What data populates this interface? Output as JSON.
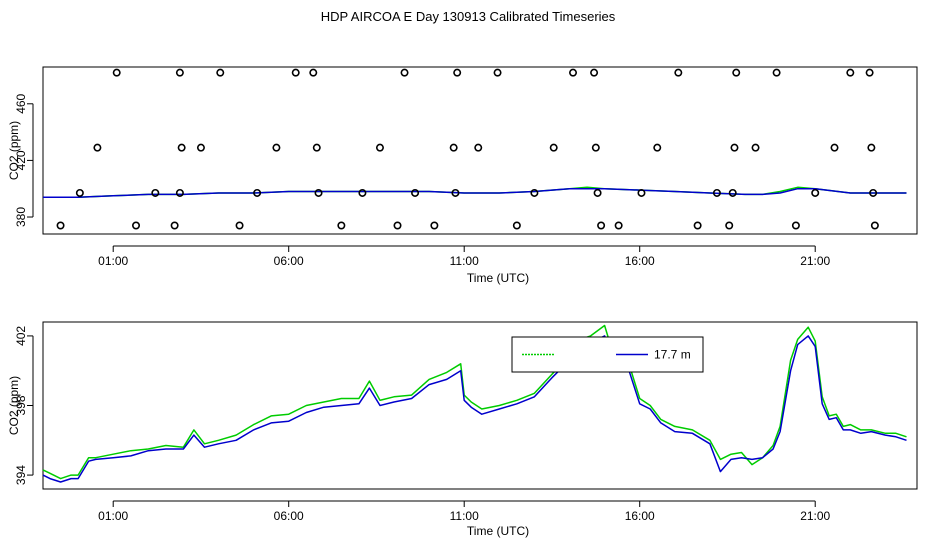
{
  "page_title": "HDP AIRCOA E  Day 130913  Calibrated Timeseries",
  "chart_data": [
    {
      "type": "scatter",
      "xlabel": "Time (UTC)",
      "ylabel": "CO2 (ppm)",
      "x_unit": "hours",
      "xlim": [
        -1.0,
        23.9
      ],
      "ylim": [
        368,
        486
      ],
      "x_ticks": [
        1,
        6,
        11,
        16,
        21
      ],
      "x_tick_labels": [
        "01:00",
        "06:00",
        "11:00",
        "16:00",
        "21:00"
      ],
      "y_ticks": [
        380,
        420,
        460
      ],
      "y_tick_labels": [
        "380",
        "420",
        "460"
      ],
      "grid": false,
      "colors": {
        "green": "#00cc00",
        "blue": "#0000cc",
        "points": "#000000"
      },
      "points": [
        [
          -0.5,
          374
        ],
        [
          0.05,
          397
        ],
        [
          0.55,
          429
        ],
        [
          1.1,
          482
        ],
        [
          1.65,
          374
        ],
        [
          2.2,
          397
        ],
        [
          2.75,
          374
        ],
        [
          2.9,
          397
        ],
        [
          2.95,
          429
        ],
        [
          2.9,
          482
        ],
        [
          3.5,
          429
        ],
        [
          4.05,
          482
        ],
        [
          4.6,
          374
        ],
        [
          5.1,
          397
        ],
        [
          5.65,
          429
        ],
        [
          6.2,
          482
        ],
        [
          6.7,
          482
        ],
        [
          6.8,
          429
        ],
        [
          6.85,
          397
        ],
        [
          7.5,
          374
        ],
        [
          8.1,
          397
        ],
        [
          8.6,
          429
        ],
        [
          9.1,
          374
        ],
        [
          9.3,
          482
        ],
        [
          9.6,
          397
        ],
        [
          10.15,
          374
        ],
        [
          10.75,
          397
        ],
        [
          10.7,
          429
        ],
        [
          10.8,
          482
        ],
        [
          11.4,
          429
        ],
        [
          11.95,
          482
        ],
        [
          12.5,
          374
        ],
        [
          13.0,
          397
        ],
        [
          13.55,
          429
        ],
        [
          14.1,
          482
        ],
        [
          14.7,
          482
        ],
        [
          14.75,
          429
        ],
        [
          14.8,
          397
        ],
        [
          14.9,
          374
        ],
        [
          15.4,
          374
        ],
        [
          16.05,
          397
        ],
        [
          16.5,
          429
        ],
        [
          17.1,
          482
        ],
        [
          17.65,
          374
        ],
        [
          18.2,
          397
        ],
        [
          18.65,
          397
        ],
        [
          18.7,
          429
        ],
        [
          18.75,
          482
        ],
        [
          18.55,
          374
        ],
        [
          19.3,
          429
        ],
        [
          19.9,
          482
        ],
        [
          20.45,
          374
        ],
        [
          21.0,
          397
        ],
        [
          21.55,
          429
        ],
        [
          22.0,
          482
        ],
        [
          22.55,
          482
        ],
        [
          22.6,
          429
        ],
        [
          22.65,
          397
        ],
        [
          22.7,
          374
        ]
      ],
      "series": [
        {
          "color": "#00cc00",
          "x": [
            -1,
            0,
            1,
            2,
            3,
            4,
            5,
            6,
            7,
            8,
            9,
            10,
            11,
            12,
            13,
            14,
            14.5,
            15,
            16,
            17,
            18,
            19,
            19.5,
            20,
            20.5,
            21,
            22,
            23,
            23.6
          ],
          "values": [
            394,
            394,
            395,
            396,
            396,
            397,
            397,
            398,
            398,
            398,
            398,
            398,
            397,
            397,
            398,
            400,
            401,
            400,
            399,
            398,
            397,
            396,
            396,
            398,
            401,
            400,
            397,
            397,
            397
          ]
        },
        {
          "color": "#0000cc",
          "x": [
            -1,
            0,
            1,
            2,
            3,
            4,
            5,
            6,
            7,
            8,
            9,
            10,
            11,
            12,
            13,
            14,
            14.5,
            15,
            16,
            17,
            18,
            19,
            19.5,
            20,
            20.5,
            21,
            22,
            23,
            23.6
          ],
          "values": [
            394,
            394,
            395,
            396,
            396,
            397,
            397,
            398,
            398,
            398,
            398,
            398,
            397,
            397,
            398,
            400,
            400,
            400,
            399,
            398,
            397,
            396,
            396,
            397,
            400,
            400,
            397,
            397,
            397
          ]
        }
      ]
    },
    {
      "type": "line",
      "xlabel": "Time (UTC)",
      "ylabel": "CO2 (ppm)",
      "x_unit": "hours",
      "xlim": [
        -1.0,
        23.9
      ],
      "ylim": [
        393.2,
        402.8
      ],
      "x_ticks": [
        1,
        6,
        11,
        16,
        21
      ],
      "x_tick_labels": [
        "01:00",
        "06:00",
        "11:00",
        "16:00",
        "21:00"
      ],
      "y_ticks": [
        394,
        398,
        402
      ],
      "y_tick_labels": [
        "394",
        "398",
        "402"
      ],
      "grid": false,
      "legend_position": "top-center",
      "series": [
        {
          "name": "",
          "color": "#00cc00",
          "x": [
            -1,
            -0.8,
            -0.5,
            -0.2,
            0,
            0.3,
            0.5,
            1,
            1.5,
            2,
            2.5,
            3,
            3.3,
            3.6,
            4,
            4.5,
            5,
            5.5,
            6,
            6.5,
            7,
            7.5,
            8,
            8.3,
            8.6,
            9,
            9.5,
            10,
            10.5,
            10.9,
            11,
            11.2,
            11.5,
            12,
            12.5,
            13,
            13.5,
            14,
            14.3,
            14.6,
            15,
            15.3,
            15.6,
            16,
            16.3,
            16.6,
            17,
            17.5,
            18,
            18.3,
            18.6,
            18.9,
            19.2,
            19.5,
            19.8,
            20,
            20.3,
            20.5,
            20.8,
            21,
            21.2,
            21.4,
            21.6,
            21.8,
            22,
            22.3,
            22.6,
            23,
            23.3,
            23.6
          ],
          "values": [
            394.3,
            394.1,
            393.8,
            394.0,
            394.0,
            395.0,
            395.0,
            395.2,
            395.4,
            395.5,
            395.7,
            395.6,
            396.6,
            395.8,
            396.0,
            396.3,
            396.9,
            397.4,
            397.5,
            398.0,
            398.2,
            398.4,
            398.4,
            399.4,
            398.3,
            398.5,
            398.6,
            399.5,
            399.9,
            400.4,
            398.6,
            398.2,
            397.8,
            398.0,
            398.3,
            398.7,
            399.8,
            400.8,
            401.8,
            402.0,
            402.6,
            400.6,
            401.0,
            398.4,
            398.0,
            397.2,
            396.8,
            396.6,
            396.0,
            394.9,
            395.2,
            395.3,
            394.6,
            395.0,
            395.7,
            396.8,
            400.6,
            401.8,
            402.5,
            401.7,
            398.5,
            397.4,
            397.5,
            396.8,
            396.9,
            396.6,
            396.6,
            396.4,
            396.4,
            396.2
          ]
        },
        {
          "name": "17.7 m",
          "color": "#0000cc",
          "x": [
            -1,
            -0.8,
            -0.5,
            -0.2,
            0,
            0.3,
            0.5,
            1,
            1.5,
            2,
            2.5,
            3,
            3.3,
            3.6,
            4,
            4.5,
            5,
            5.5,
            6,
            6.5,
            7,
            7.5,
            8,
            8.3,
            8.6,
            9,
            9.5,
            10,
            10.5,
            10.9,
            11,
            11.2,
            11.5,
            12,
            12.5,
            13,
            13.5,
            14,
            14.3,
            14.6,
            15,
            15.3,
            15.6,
            16,
            16.3,
            16.6,
            17,
            17.5,
            18,
            18.3,
            18.6,
            18.9,
            19.2,
            19.5,
            19.8,
            20,
            20.3,
            20.5,
            20.8,
            21,
            21.2,
            21.4,
            21.6,
            21.8,
            22,
            22.3,
            22.6,
            23,
            23.3,
            23.6
          ],
          "values": [
            394.0,
            393.8,
            393.6,
            393.8,
            393.8,
            394.8,
            394.9,
            395.0,
            395.1,
            395.4,
            395.5,
            395.5,
            396.3,
            395.6,
            395.8,
            396.0,
            396.6,
            397.0,
            397.1,
            397.6,
            397.9,
            398.0,
            398.1,
            399.0,
            398.0,
            398.2,
            398.4,
            399.2,
            399.5,
            400.0,
            398.3,
            397.9,
            397.5,
            397.8,
            398.1,
            398.5,
            399.6,
            400.6,
            401.6,
            401.6,
            402.0,
            400.3,
            400.6,
            398.1,
            397.8,
            397.0,
            396.5,
            396.4,
            395.8,
            394.2,
            394.9,
            395.0,
            394.9,
            395.0,
            395.5,
            396.5,
            400.0,
            401.5,
            402.0,
            401.4,
            398.1,
            397.2,
            397.3,
            396.6,
            396.6,
            396.4,
            396.5,
            396.3,
            396.2,
            396.0
          ]
        }
      ],
      "legend_entries": [
        "",
        "17.7 m"
      ]
    }
  ]
}
